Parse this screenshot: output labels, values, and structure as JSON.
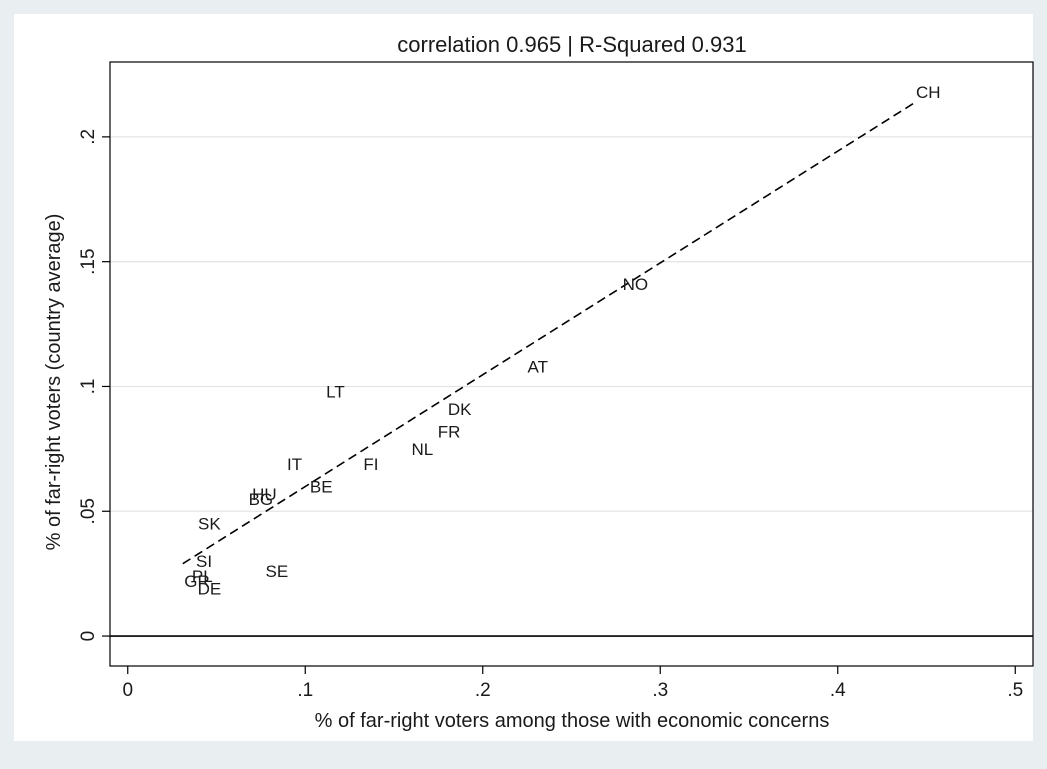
{
  "chart_data": {
    "type": "scatter",
    "title": "correlation 0.965 | R-Squared 0.931",
    "xlabel": "% of far-right voters among those with economic concerns",
    "ylabel": "% of far-right voters (country average)",
    "xlim": [
      -0.01,
      0.51
    ],
    "ylim": [
      -0.012,
      0.23
    ],
    "x_ticks": [
      {
        "value": 0,
        "label": "0"
      },
      {
        "value": 0.1,
        "label": ".1"
      },
      {
        "value": 0.2,
        "label": ".2"
      },
      {
        "value": 0.3,
        "label": ".3"
      },
      {
        "value": 0.4,
        "label": ".4"
      },
      {
        "value": 0.5,
        "label": ".5"
      }
    ],
    "y_ticks": [
      {
        "value": 0,
        "label": "0"
      },
      {
        "value": 0.05,
        "label": ".05"
      },
      {
        "value": 0.1,
        "label": ".1"
      },
      {
        "value": 0.15,
        "label": ".15"
      },
      {
        "value": 0.2,
        "label": ".2"
      }
    ],
    "grid": "horizontal",
    "points": [
      {
        "label": "CH",
        "x": 0.451,
        "y": 0.218
      },
      {
        "label": "NO",
        "x": 0.286,
        "y": 0.141
      },
      {
        "label": "AT",
        "x": 0.231,
        "y": 0.108
      },
      {
        "label": "LT",
        "x": 0.117,
        "y": 0.098
      },
      {
        "label": "DK",
        "x": 0.187,
        "y": 0.091
      },
      {
        "label": "FR",
        "x": 0.181,
        "y": 0.082
      },
      {
        "label": "NL",
        "x": 0.166,
        "y": 0.075
      },
      {
        "label": "FI",
        "x": 0.137,
        "y": 0.069
      },
      {
        "label": "IT",
        "x": 0.094,
        "y": 0.069
      },
      {
        "label": "BE",
        "x": 0.109,
        "y": 0.06
      },
      {
        "label": "HU",
        "x": 0.077,
        "y": 0.057
      },
      {
        "label": "BG",
        "x": 0.075,
        "y": 0.055
      },
      {
        "label": "SK",
        "x": 0.046,
        "y": 0.045
      },
      {
        "label": "SE",
        "x": 0.084,
        "y": 0.026
      },
      {
        "label": "SI",
        "x": 0.043,
        "y": 0.03
      },
      {
        "label": "PL",
        "x": 0.042,
        "y": 0.024
      },
      {
        "label": "GR",
        "x": 0.039,
        "y": 0.022
      },
      {
        "label": "DE",
        "x": 0.046,
        "y": 0.019
      }
    ],
    "fit_line": {
      "style": "dashed",
      "x": [
        0.031,
        0.444
      ],
      "y": [
        0.029,
        0.214
      ]
    },
    "zero_line": {
      "y": 0
    }
  }
}
